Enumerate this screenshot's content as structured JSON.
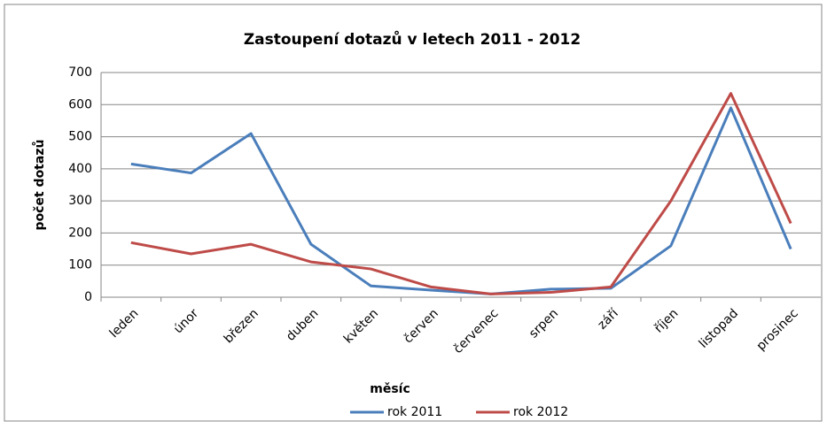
{
  "chart_data": {
    "type": "line",
    "title": "Zastoupení dotazů v letech 2011 - 2012",
    "x_label": "měsíc",
    "y_label": "počet dotazů",
    "categories": [
      "leden",
      "únor",
      "březen",
      "duben",
      "květen",
      "červen",
      "červenec",
      "srpen",
      "září",
      "říjen",
      "listopad",
      "prosinec"
    ],
    "series": [
      {
        "name": "rok 2011",
        "color": "#4a7ebb",
        "values": [
          415,
          387,
          510,
          165,
          35,
          22,
          10,
          25,
          28,
          160,
          590,
          150
        ]
      },
      {
        "name": "rok 2012",
        "color": "#be4b48",
        "values": [
          170,
          135,
          165,
          110,
          88,
          32,
          10,
          15,
          32,
          300,
          635,
          230
        ]
      }
    ],
    "ylim": [
      0,
      700
    ],
    "yticks": [
      0,
      100,
      200,
      300,
      400,
      500,
      600,
      700
    ],
    "grid": true,
    "legend": "bottom"
  }
}
